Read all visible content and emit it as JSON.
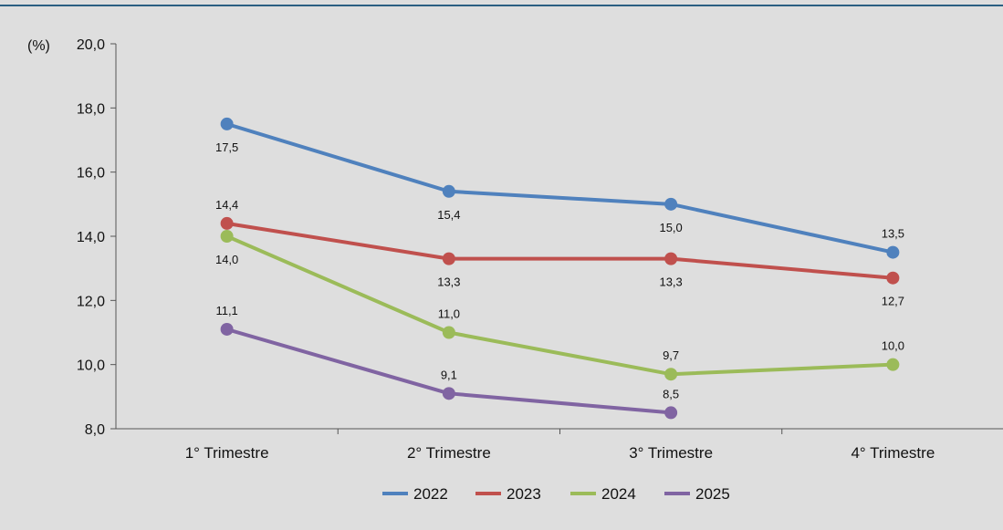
{
  "chart_data": {
    "type": "line",
    "unit_label": "(%)",
    "categories": [
      "1° Trimestre",
      "2° Trimestre",
      "3° Trimestre",
      "4° Trimestre"
    ],
    "ylim": [
      8.0,
      20.0
    ],
    "yticks": [
      "8,0",
      "10,0",
      "12,0",
      "14,0",
      "16,0",
      "18,0",
      "20,0"
    ],
    "grid": false,
    "legend_position": "bottom",
    "series": [
      {
        "name": "2022",
        "color": "#4f81bd",
        "values": [
          17.5,
          15.4,
          15.0,
          13.5
        ],
        "labels": [
          "17,5",
          "15,4",
          "15,0",
          "13,5"
        ]
      },
      {
        "name": "2023",
        "color": "#c0504d",
        "values": [
          14.4,
          13.3,
          13.3,
          12.7
        ],
        "labels": [
          "14,4",
          "13,3",
          "13,3",
          "12,7"
        ]
      },
      {
        "name": "2024",
        "color": "#9bbb59",
        "values": [
          14.0,
          11.0,
          9.7,
          10.0
        ],
        "labels": [
          "14,0",
          "11,0",
          "9,7",
          "10,0"
        ]
      },
      {
        "name": "2025",
        "color": "#8064a2",
        "values": [
          11.1,
          9.1,
          8.5,
          null
        ],
        "labels": [
          "11,1",
          "9,1",
          "8,5",
          ""
        ]
      }
    ]
  },
  "style": {
    "background": "#dedede",
    "top_rule": "#2b5f82",
    "axis": "#555555"
  }
}
